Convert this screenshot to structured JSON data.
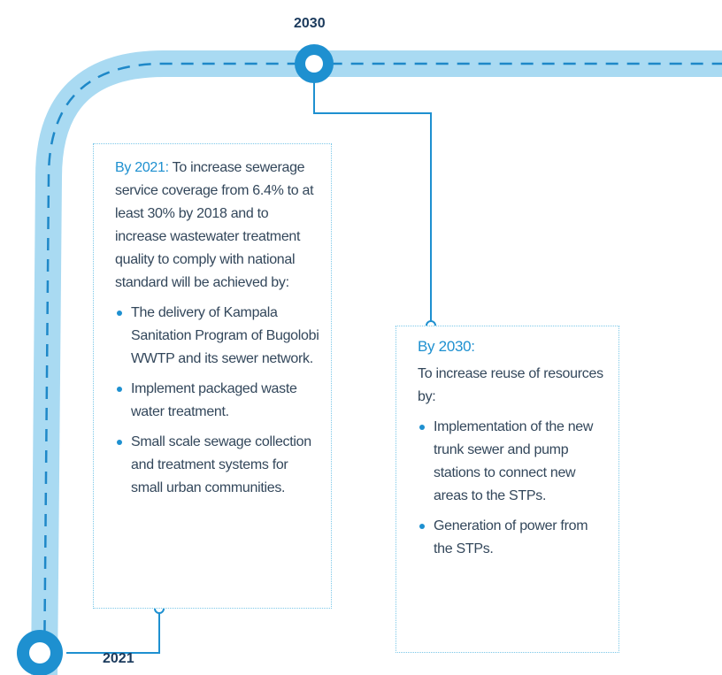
{
  "milestones": [
    {
      "year": "2021",
      "heading": "By 2021:",
      "intro": "To increase sewerage service coverage from 6.4% to at least 30% by 2018 and to increase wastewater treatment quality to comply with national standard will be achieved by:",
      "bullets": [
        "The delivery of Kampala Sanitation Program of Bugolobi WWTP and its sewer network.",
        "Implement packaged waste water treatment.",
        "Small scale sewage collection and treatment systems for small urban communities."
      ]
    },
    {
      "year": "2030",
      "heading": "By 2030:",
      "intro": "To increase reuse of resources by:",
      "bullets": [
        "Implementation of the new trunk sewer and pump stations to connect new areas to the STPs.",
        "Generation of power from the STPs."
      ]
    }
  ]
}
